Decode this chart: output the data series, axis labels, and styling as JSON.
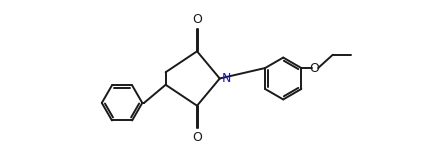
{
  "bg_color": "#ffffff",
  "line_color": "#1a1a1a",
  "text_color": "#1a1a1a",
  "N_color": "#1a1aaa",
  "line_width": 1.4,
  "font_size": 9,
  "figsize": [
    4.29,
    1.57
  ],
  "dpi": 100,
  "xlim": [
    0.0,
    10.5
  ],
  "ylim": [
    0.5,
    5.0
  ]
}
